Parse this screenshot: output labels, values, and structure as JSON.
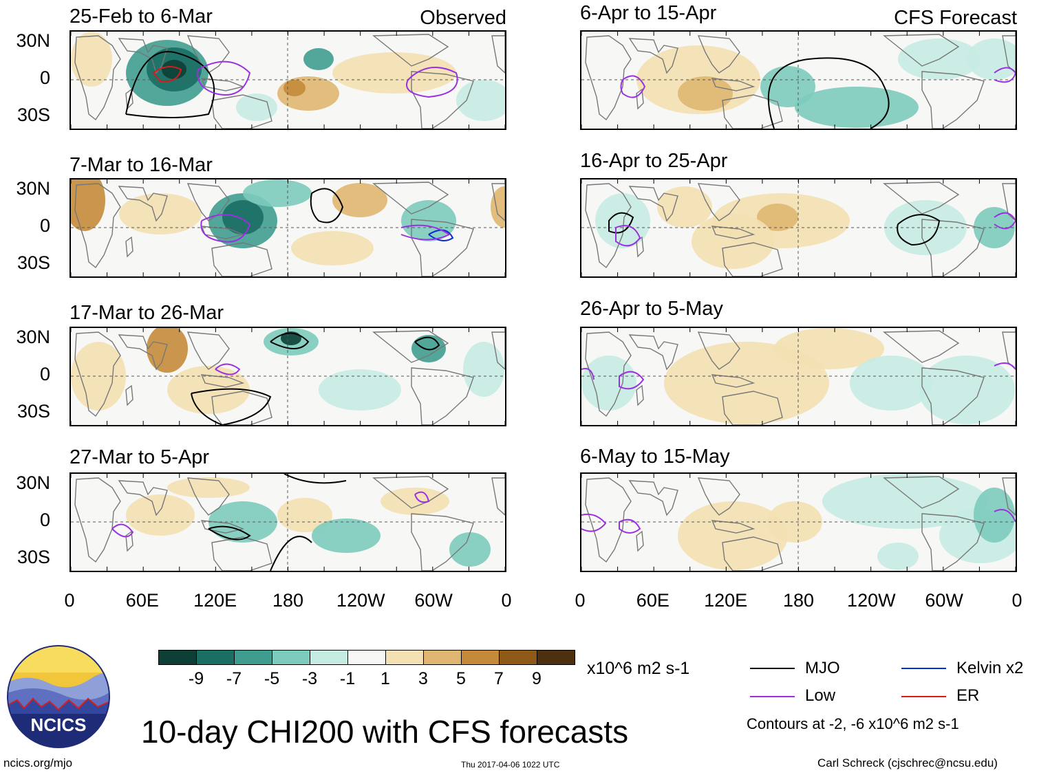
{
  "title": "10-day CHI200 with CFS forecasts",
  "observed_label": "Observed",
  "forecast_label": "CFS Forecast",
  "left_panels": [
    {
      "title": "25-Feb to 6-Mar"
    },
    {
      "title": "7-Mar to 16-Mar"
    },
    {
      "title": "17-Mar to 26-Mar"
    },
    {
      "title": "27-Mar to 5-Apr"
    }
  ],
  "right_panels": [
    {
      "title": "6-Apr to 15-Apr"
    },
    {
      "title": "16-Apr to 25-Apr"
    },
    {
      "title": "26-Apr to 5-May"
    },
    {
      "title": "6-May to 15-May"
    }
  ],
  "lat_labels": [
    "30N",
    "0",
    "30S"
  ],
  "lon_labels": [
    "0",
    "60E",
    "120E",
    "180",
    "120W",
    "60W",
    "0"
  ],
  "colorbar": {
    "labels": [
      "-9",
      "-7",
      "-5",
      "-3",
      "-1",
      "1",
      "3",
      "5",
      "7",
      "9"
    ],
    "colors": [
      "#0d3f36",
      "#1b6e63",
      "#3f9d90",
      "#7ccbbd",
      "#c5ebe3",
      "#f7f7f5",
      "#f3e0b3",
      "#dfb671",
      "#c48a3a",
      "#8f5a18",
      "#4c3010"
    ],
    "units": "x10^6 m2 s-1"
  },
  "legend": {
    "items": [
      {
        "label": "MJO",
        "color": "#000000"
      },
      {
        "label": "Kelvin x2",
        "color": "#0a2bd1"
      },
      {
        "label": "Low",
        "color": "#9b30e0"
      },
      {
        "label": "ER",
        "color": "#d91a1a"
      }
    ],
    "contours_note": "Contours at -2, -6 x10^6 m2 s-1"
  },
  "logo": {
    "text": "NCICS"
  },
  "footer": {
    "url": "ncics.org/mjo",
    "timestamp": "Thu 2017-04-06 1022 UTC",
    "author": "Carl Schreck (cjschrec@ncsu.edu)"
  }
}
